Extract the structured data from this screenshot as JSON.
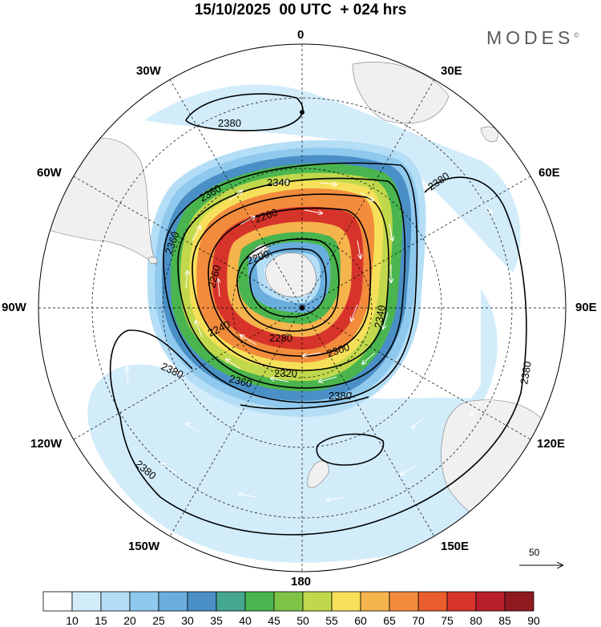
{
  "header": {
    "title": "15/10/2025  00 UTC  + 024 hrs",
    "brand": "MODES",
    "brand_mark": "©"
  },
  "longitude_labels": {
    "l0": "0",
    "l30e": "30E",
    "l60e": "60E",
    "l90e": "90E",
    "l120e": "120E",
    "l150e": "150E",
    "l180": "180",
    "l150w": "150W",
    "l120w": "120W",
    "l90w": "90W",
    "l60w": "60W",
    "l30w": "30W"
  },
  "contours": {
    "c2200": "2200",
    "c2240": "2240",
    "c2260a": "2260",
    "c2260b": "2260",
    "c2280": "2280",
    "c2300": "2300",
    "c2320": "2320",
    "c2340a": "2340",
    "c2340b": "2340",
    "c2360a": "2360",
    "c2360b": "2360",
    "c2360c": "2360",
    "c2380a": "2380",
    "c2380b": "2380",
    "c2380c": "2380",
    "c2380d": "2380",
    "c2380e": "2380",
    "c2380f": "2380"
  },
  "reference_vector": {
    "label": "50"
  },
  "colorbar": {
    "ticks": [
      "10",
      "15",
      "20",
      "25",
      "30",
      "35",
      "40",
      "45",
      "50",
      "55",
      "60",
      "65",
      "70",
      "75",
      "80",
      "85",
      "90"
    ],
    "colors": [
      "#ffffff",
      "#d2ecfa",
      "#b4def6",
      "#90c9ee",
      "#6aaede",
      "#4a90c6",
      "#45a78f",
      "#4ab54e",
      "#7ec346",
      "#c2d84c",
      "#f6e05a",
      "#f6b44c",
      "#f28c3c",
      "#ea5d2c",
      "#d6342a",
      "#b81f2a",
      "#8e1a20"
    ]
  },
  "colors": {
    "frame": "#000000",
    "land": "#f0f0f0",
    "coast": "#777777"
  }
}
